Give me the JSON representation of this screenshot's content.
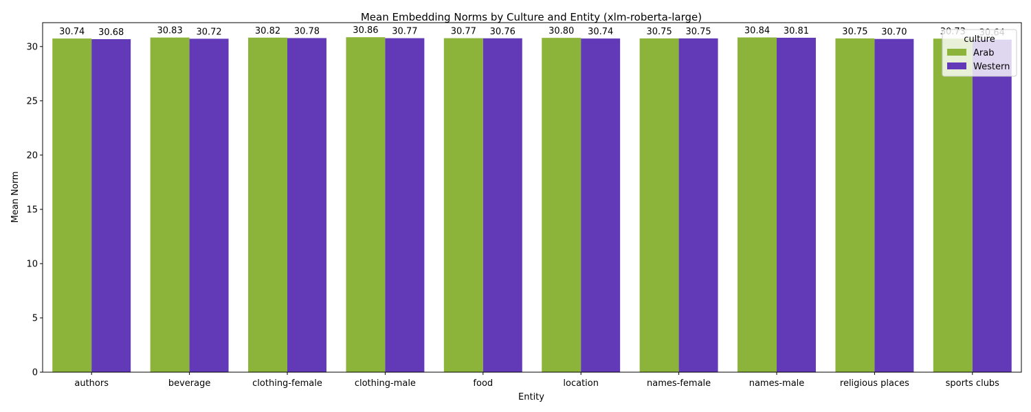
{
  "chart_data": {
    "type": "bar",
    "title": "Mean Embedding Norms by Culture and Entity (xlm-roberta-large)",
    "xlabel": "Entity",
    "ylabel": "Mean Norm",
    "ylim": [
      0,
      32.2
    ],
    "yticks": [
      0,
      5,
      10,
      15,
      20,
      25,
      30
    ],
    "grid": false,
    "legend": {
      "title": "culture",
      "placement": "top-right"
    },
    "categories": [
      "authors",
      "beverage",
      "clothing-female",
      "clothing-male",
      "food",
      "location",
      "names-female",
      "names-male",
      "religious places",
      "sports clubs"
    ],
    "series": [
      {
        "name": "Arab",
        "color": "#8db43a",
        "values": [
          30.74,
          30.83,
          30.82,
          30.86,
          30.77,
          30.8,
          30.75,
          30.84,
          30.75,
          30.73
        ],
        "labels": [
          "30.74",
          "30.83",
          "30.82",
          "30.86",
          "30.77",
          "30.80",
          "30.75",
          "30.84",
          "30.75",
          "30.73"
        ]
      },
      {
        "name": "Western",
        "color": "#6239b6",
        "values": [
          30.68,
          30.72,
          30.78,
          30.77,
          30.76,
          30.74,
          30.75,
          30.81,
          30.7,
          30.64
        ],
        "labels": [
          "30.68",
          "30.72",
          "30.78",
          "30.77",
          "30.76",
          "30.74",
          "30.75",
          "30.81",
          "30.70",
          "30.64"
        ]
      }
    ]
  }
}
